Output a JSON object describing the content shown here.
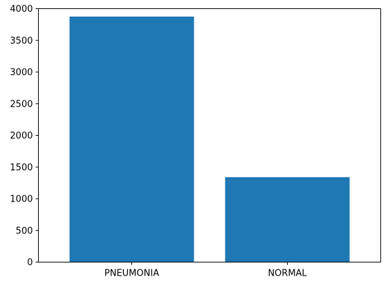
{
  "chart_data": {
    "type": "bar",
    "title": "",
    "xlabel": "",
    "ylabel": "",
    "categories": [
      "PNEUMONIA",
      "NORMAL"
    ],
    "values": [
      3875,
      1341
    ],
    "ylim": [
      0,
      4000
    ],
    "yticks": [
      0,
      500,
      1000,
      1500,
      2000,
      2500,
      3000,
      3500,
      4000
    ],
    "grid": false,
    "legend": "none",
    "bar_color": "#1f77b4"
  }
}
